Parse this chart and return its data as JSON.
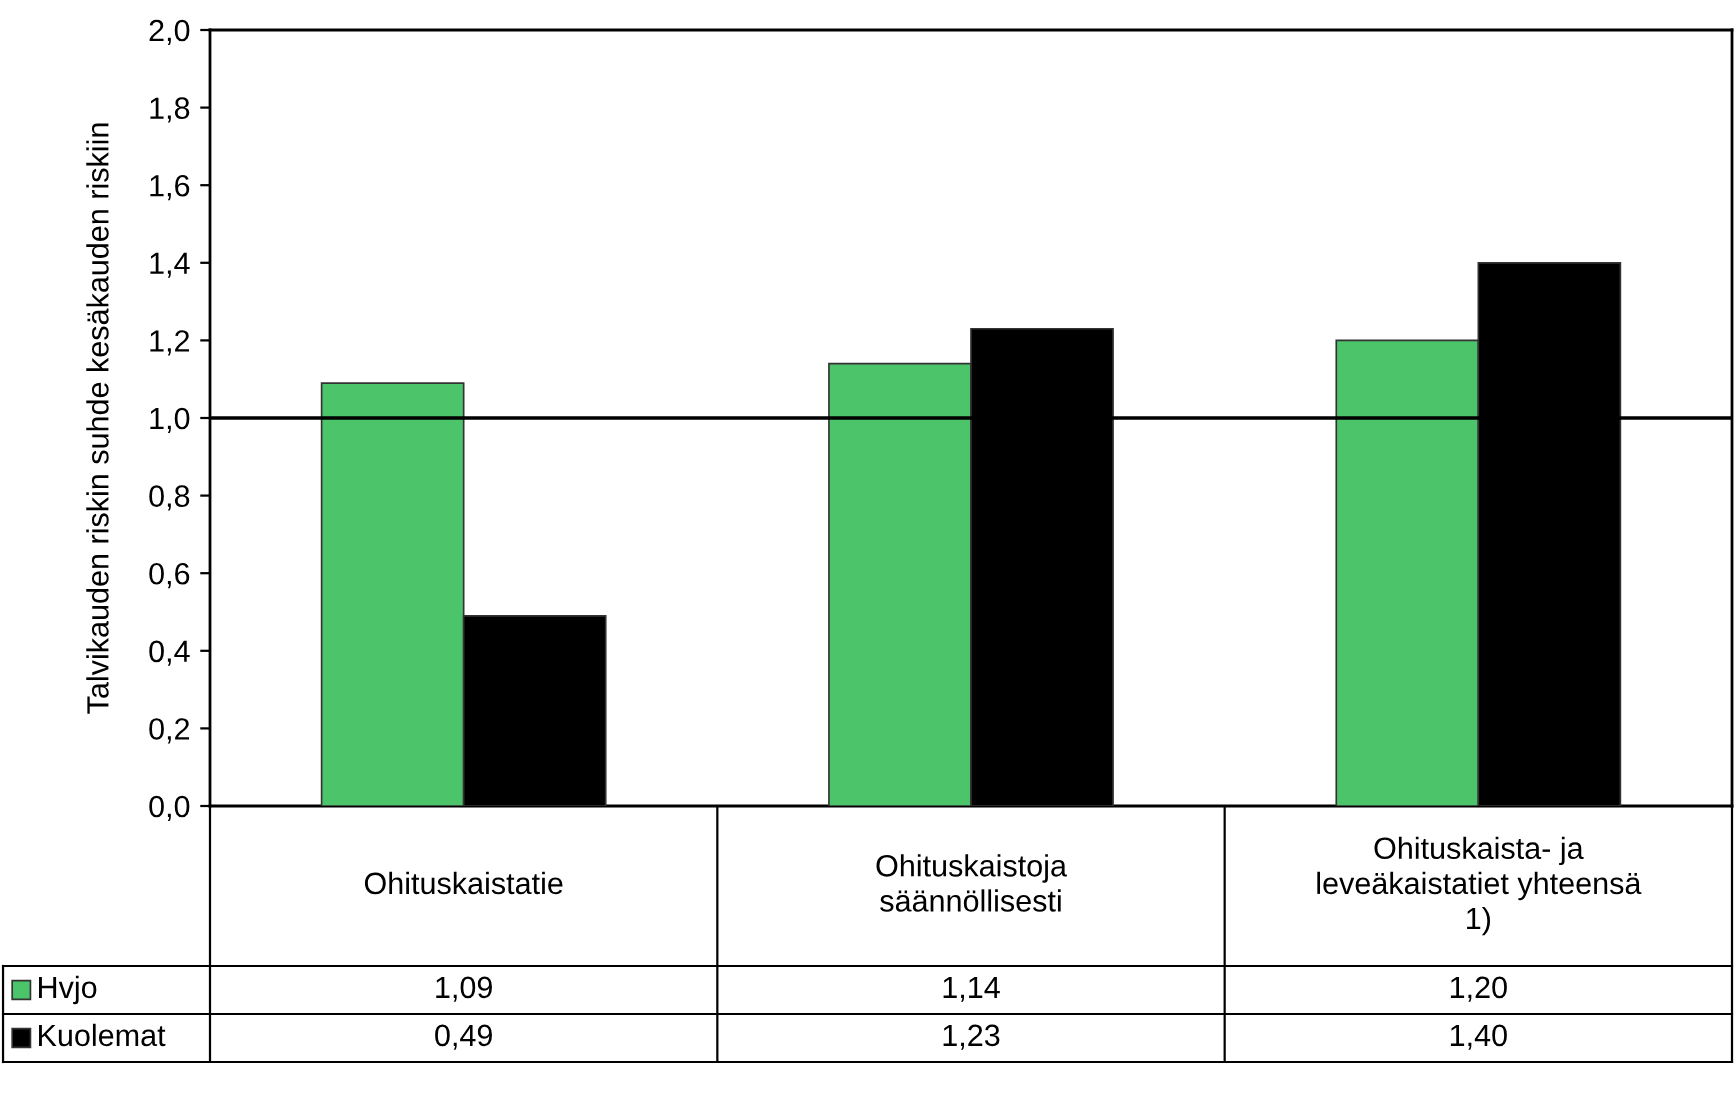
{
  "chart_data": {
    "type": "bar",
    "ylabel": "Talvikauden riskin suhde kesäkauden riskiin",
    "categories": [
      "Ohituskaistatie",
      "Ohituskaistoja\nsäännöllisesti",
      "Ohituskaista- ja\nleveäkaistatiet yhteensä\n1)"
    ],
    "series": [
      {
        "name": "Hvjo",
        "color": "#4cc46a",
        "values": [
          1.09,
          1.14,
          1.2
        ],
        "value_labels": [
          "1,09",
          "1,14",
          "1,20"
        ]
      },
      {
        "name": "Kuolemat",
        "color": "#000000",
        "values": [
          0.49,
          1.23,
          1.4
        ],
        "value_labels": [
          "0,49",
          "1,23",
          "1,40"
        ]
      }
    ],
    "ylim": [
      0,
      2
    ],
    "yticks": [
      {
        "value": 0,
        "label": "0,0"
      },
      {
        "value": 0.2,
        "label": "0,2"
      },
      {
        "value": 0.4,
        "label": "0,4"
      },
      {
        "value": 0.6,
        "label": "0,6"
      },
      {
        "value": 0.8,
        "label": "0,8"
      },
      {
        "value": 1.0,
        "label": "1,0"
      },
      {
        "value": 1.2,
        "label": "1,2"
      },
      {
        "value": 1.4,
        "label": "1,4"
      },
      {
        "value": 1.6,
        "label": "1,6"
      },
      {
        "value": 1.8,
        "label": "1,8"
      },
      {
        "value": 2.0,
        "label": "2,0"
      }
    ],
    "ref_lines": [
      {
        "axis": "y",
        "value": 1.0,
        "label": null,
        "color": "#000000"
      }
    ],
    "grid": false,
    "legend": "bottom left"
  }
}
